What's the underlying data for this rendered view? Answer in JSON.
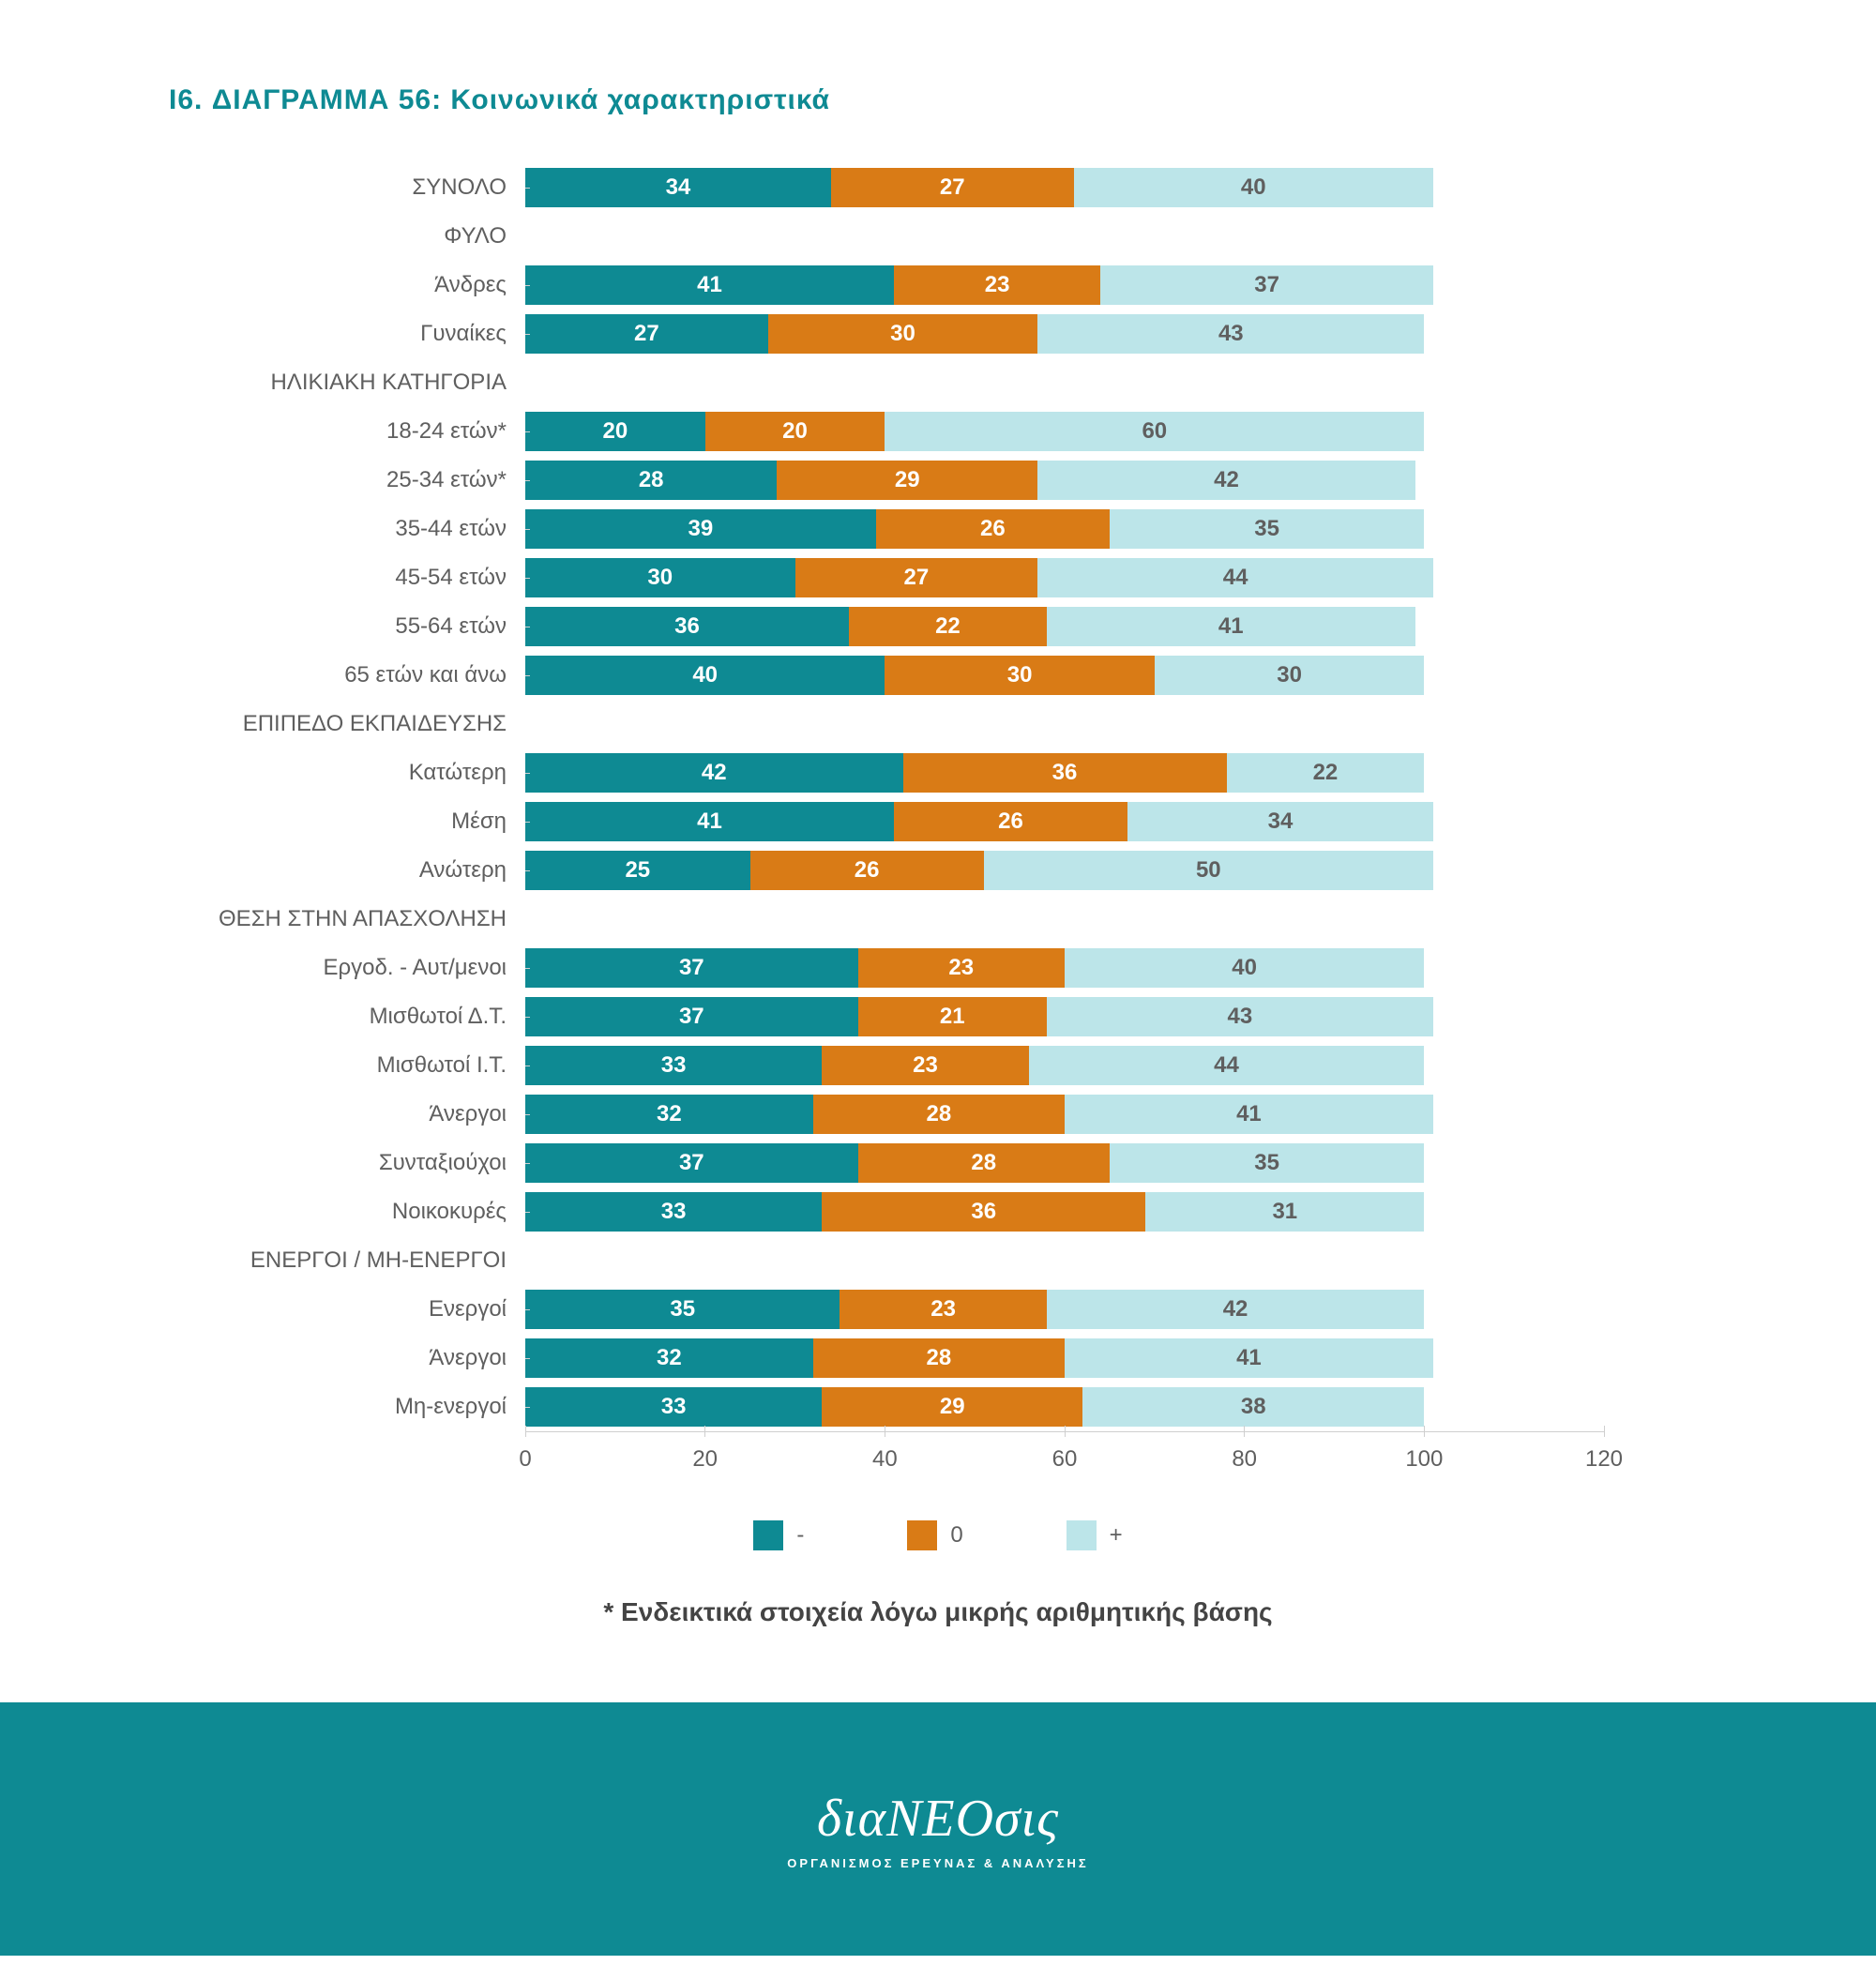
{
  "title": "I6. ΔΙΑΓΡΑΜΜΑ 56: Κοινωνικά χαρακτηριστικά",
  "title_fontsize": 30,
  "title_color": "#0e8a93",
  "label_color": "#5f5f5f",
  "label_fontsize": 24,
  "value_fontsize": 24,
  "footnote": "* Ενδεικτικά στοιχεία λόγω μικρής αριθμητικής βάσης",
  "footnote_fontsize": 28,
  "footer_bg": "#0e8a93",
  "brand": "διαNEOσις",
  "brand_fontsize": 56,
  "tagline": "ΟΡΓΑΝΙΣΜΟΣ ΕΡΕΥΝΑΣ & ΑΝΑΛΥΣΗΣ",
  "tagline_fontsize": 13,
  "xmax": 120,
  "xtick_step": 20,
  "xticks": [
    0,
    20,
    40,
    60,
    80,
    100,
    120
  ],
  "series": [
    {
      "key": "neg",
      "label": "-",
      "color": "#0e8a93",
      "text_color": "#ffffff"
    },
    {
      "key": "zero",
      "label": "0",
      "color": "#d97b16",
      "text_color": "#ffffff"
    },
    {
      "key": "pos",
      "label": "+",
      "color": "#bce5e9",
      "text_color": "#5f5f5f"
    }
  ],
  "rows": [
    {
      "label": "ΣΥΝΟΛΟ",
      "values": [
        34,
        27,
        40
      ]
    },
    {
      "label": "ΦΥΛΟ",
      "header": true
    },
    {
      "label": "Άνδρες",
      "values": [
        41,
        23,
        37
      ]
    },
    {
      "label": "Γυναίκες",
      "values": [
        27,
        30,
        43
      ]
    },
    {
      "label": "ΗΛΙΚΙΑΚΗ ΚΑΤΗΓΟΡΙΑ",
      "header": true
    },
    {
      "label": "18-24 ετών*",
      "values": [
        20,
        20,
        60
      ]
    },
    {
      "label": "25-34 ετών*",
      "values": [
        28,
        29,
        42
      ]
    },
    {
      "label": "35-44 ετών",
      "values": [
        39,
        26,
        35
      ]
    },
    {
      "label": "45-54 ετών",
      "values": [
        30,
        27,
        44
      ]
    },
    {
      "label": "55-64 ετών",
      "values": [
        36,
        22,
        41
      ]
    },
    {
      "label": "65 ετών και άνω",
      "values": [
        40,
        30,
        30
      ]
    },
    {
      "label": "ΕΠΙΠΕΔΟ ΕΚΠΑΙΔΕΥΣΗΣ",
      "header": true
    },
    {
      "label": "Κατώτερη",
      "values": [
        42,
        36,
        22
      ]
    },
    {
      "label": "Μέση",
      "values": [
        41,
        26,
        34
      ]
    },
    {
      "label": "Ανώτερη",
      "values": [
        25,
        26,
        50
      ]
    },
    {
      "label": "ΘΕΣΗ ΣΤΗΝ ΑΠΑΣΧΟΛΗΣΗ",
      "header": true
    },
    {
      "label": "Εργοδ. - Αυτ/μενοι",
      "values": [
        37,
        23,
        40
      ]
    },
    {
      "label": "Μισθωτοί Δ.Τ.",
      "values": [
        37,
        21,
        43
      ]
    },
    {
      "label": "Μισθωτοί Ι.Τ.",
      "values": [
        33,
        23,
        44
      ]
    },
    {
      "label": "Άνεργοι",
      "values": [
        32,
        28,
        41
      ]
    },
    {
      "label": "Συνταξιούχοι",
      "values": [
        37,
        28,
        35
      ]
    },
    {
      "label": "Νοικοκυρές",
      "values": [
        33,
        36,
        31
      ]
    },
    {
      "label": "ΕΝΕΡΓΟΙ / ΜΗ-ΕΝΕΡΓΟΙ",
      "header": true
    },
    {
      "label": "Ενεργοί",
      "values": [
        35,
        23,
        42
      ]
    },
    {
      "label": "Άνεργοι",
      "values": [
        32,
        28,
        41
      ]
    },
    {
      "label": "Μη-ενεργοί",
      "values": [
        33,
        29,
        38
      ]
    }
  ]
}
